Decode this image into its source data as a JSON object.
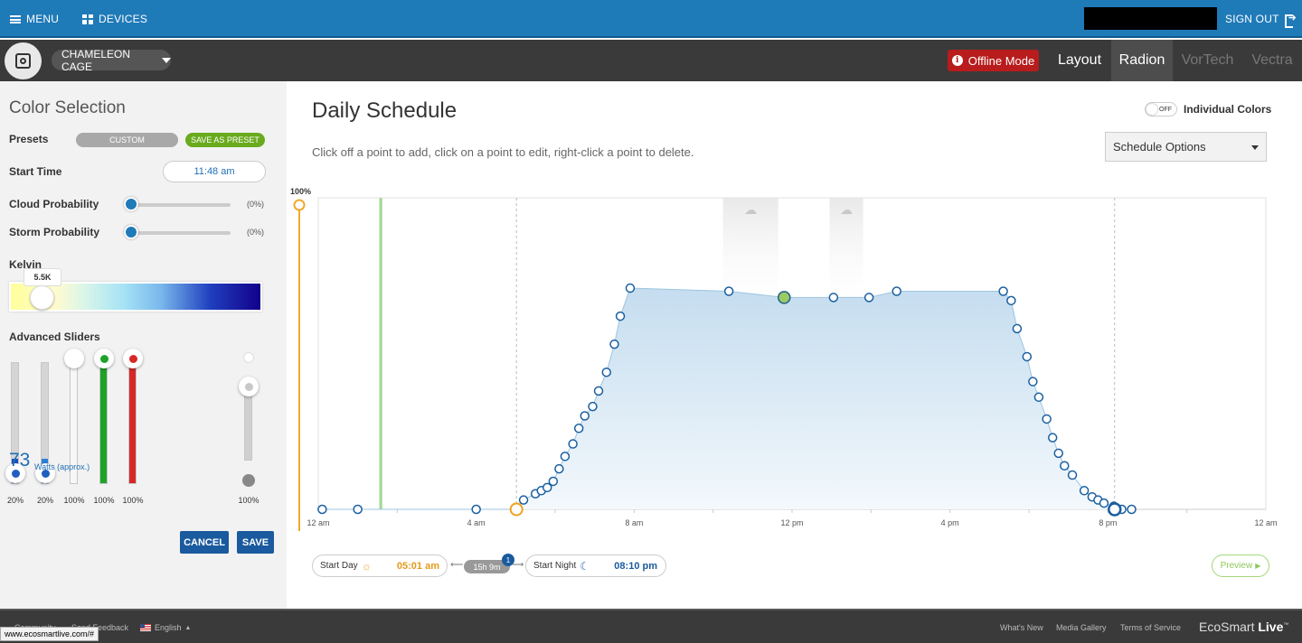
{
  "topbar": {
    "menu_label": "MENU",
    "devices_label": "DEVICES",
    "signout_label": "SIGN OUT"
  },
  "subbar": {
    "tank_name": "CHAMELEON CAGE",
    "offline_label": "Offline Mode",
    "tabs": [
      {
        "label": "Layout",
        "active": false,
        "disabled": false
      },
      {
        "label": "Radion",
        "active": true,
        "disabled": false
      },
      {
        "label": "VorTech",
        "active": false,
        "disabled": true
      },
      {
        "label": "Vectra",
        "active": false,
        "disabled": true
      }
    ]
  },
  "left": {
    "title": "Color Selection",
    "presets_label": "Presets",
    "preset_value": "CUSTOM",
    "save_preset_label": "SAVE AS PRESET",
    "start_time_label": "Start Time",
    "start_time_value": "11:48 am",
    "cloud_label": "Cloud Probability",
    "cloud_value": "(0%)",
    "storm_label": "Storm Probability",
    "storm_value": "(0%)",
    "kelvin_label": "Kelvin",
    "kelvin_value": "5.5K",
    "advanced_label": "Advanced Sliders",
    "channels": [
      {
        "value": "20%",
        "level": 0.2,
        "color": "#1f4fbf"
      },
      {
        "value": "20%",
        "level": 0.2,
        "color": "#2a7fd6"
      },
      {
        "value": "100%",
        "level": 1.0,
        "color": "#f7f7f7"
      },
      {
        "value": "100%",
        "level": 1.0,
        "color": "#1ea328"
      },
      {
        "value": "100%",
        "level": 1.0,
        "color": "#d62828"
      },
      {
        "value": "100%",
        "level": 1.0,
        "color": "#d0d0d0"
      }
    ],
    "watts_value": "73",
    "watts_label": "Watts (approx.)",
    "cancel_label": "CANCEL",
    "save_label": "SAVE"
  },
  "main": {
    "title": "Daily Schedule",
    "help_text": "Click off a point to add, click on a point to edit, right-click a point to delete.",
    "individual_colors_label": "Individual Colors",
    "toggle_state": "OFF",
    "schedule_options_label": "Schedule Options",
    "y_max_label": "100%",
    "start_day_label": "Start Day",
    "start_day_time": "05:01 am",
    "duration": "15h 9m",
    "duration_badge": "1",
    "start_night_label": "Start Night",
    "start_night_time": "08:10 pm",
    "preview_label": "Preview"
  },
  "chart_data": {
    "type": "area",
    "xlabel": "",
    "ylabel": "",
    "x_ticks": [
      "12 am",
      "4 am",
      "8 am",
      "12 pm",
      "4 pm",
      "8 pm",
      "12 am"
    ],
    "ylim": [
      0,
      100
    ],
    "current_time": "11:48 am",
    "points": [
      [
        0.1,
        0
      ],
      [
        1.0,
        0
      ],
      [
        4.0,
        0
      ],
      [
        5.0,
        0
      ],
      [
        5.2,
        3
      ],
      [
        5.5,
        5
      ],
      [
        5.65,
        6
      ],
      [
        5.8,
        7
      ],
      [
        5.95,
        9
      ],
      [
        6.1,
        13
      ],
      [
        6.25,
        17
      ],
      [
        6.45,
        21
      ],
      [
        6.6,
        26
      ],
      [
        6.75,
        30
      ],
      [
        6.95,
        33
      ],
      [
        7.1,
        38
      ],
      [
        7.3,
        44
      ],
      [
        7.5,
        53
      ],
      [
        7.65,
        62
      ],
      [
        7.9,
        71
      ],
      [
        10.4,
        70
      ],
      [
        11.8,
        68
      ],
      [
        13.05,
        68
      ],
      [
        13.95,
        68
      ],
      [
        14.65,
        70
      ],
      [
        17.35,
        70
      ],
      [
        17.55,
        67
      ],
      [
        17.7,
        58
      ],
      [
        17.95,
        49
      ],
      [
        18.1,
        41
      ],
      [
        18.25,
        36
      ],
      [
        18.45,
        29
      ],
      [
        18.6,
        23
      ],
      [
        18.75,
        18
      ],
      [
        18.9,
        14
      ],
      [
        19.1,
        11
      ],
      [
        19.4,
        6
      ],
      [
        19.6,
        4
      ],
      [
        19.75,
        3
      ],
      [
        19.9,
        2
      ],
      [
        20.15,
        1
      ],
      [
        20.35,
        0
      ],
      [
        20.6,
        0
      ]
    ],
    "highlight_point": [
      11.8,
      68
    ],
    "start_day": 5.02,
    "start_night": 20.17,
    "cloud_windows": [
      [
        10.25,
        11.65
      ],
      [
        12.95,
        13.8
      ]
    ]
  },
  "footer": {
    "community": "Community",
    "feedback": "Send Feedback",
    "language": "English",
    "whats_new": "What's New",
    "media_gallery": "Media Gallery",
    "terms": "Terms of Service",
    "brand_a": "EcoSmart ",
    "brand_b": "Live",
    "status_url": "www.ecosmartlive.com/#"
  }
}
